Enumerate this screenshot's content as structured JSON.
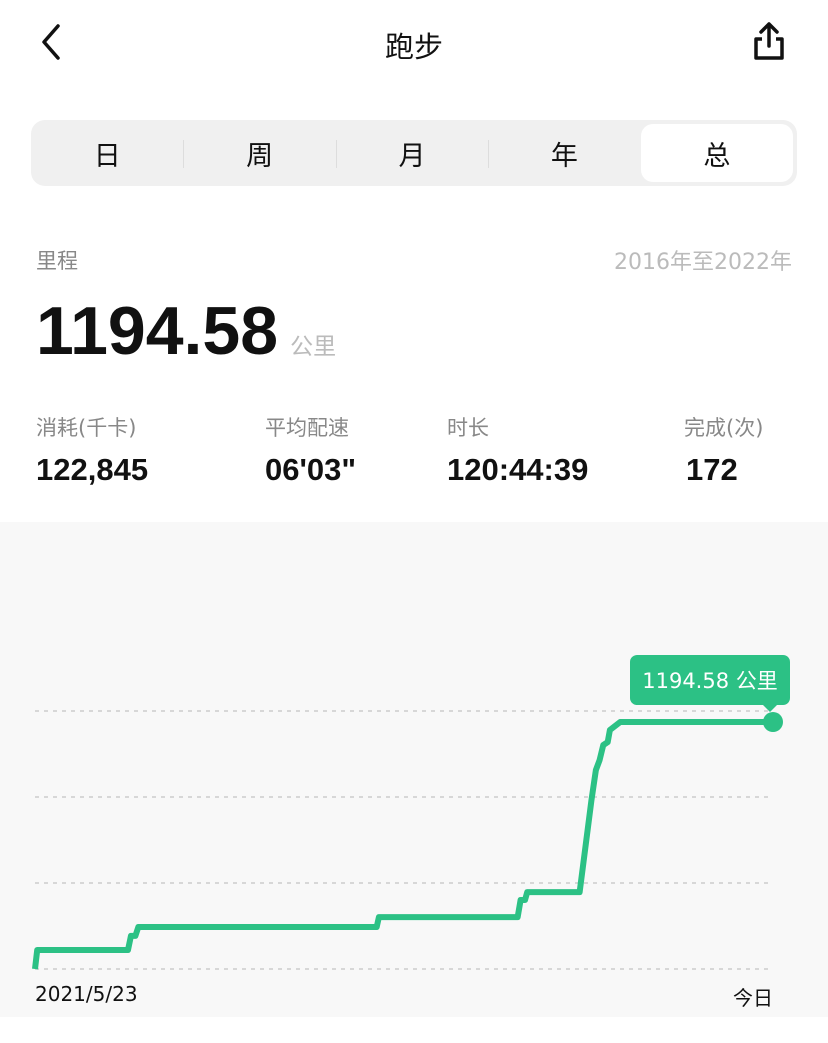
{
  "header": {
    "title": "跑步",
    "back_icon": "chevron-left-icon",
    "share_icon": "share-icon"
  },
  "tabs": [
    {
      "label": "日"
    },
    {
      "label": "周"
    },
    {
      "label": "月"
    },
    {
      "label": "年"
    },
    {
      "label": "总",
      "active": true
    }
  ],
  "summary": {
    "label": "里程",
    "range": "2016年至2022年",
    "distance": "1194.58",
    "unit": "公里"
  },
  "stats": [
    {
      "label": "消耗(千卡)",
      "value": "122,845"
    },
    {
      "label": "平均配速",
      "value": "06'03\""
    },
    {
      "label": "时长",
      "value": "120:44:39"
    },
    {
      "label": "完成(次)",
      "value": "172"
    }
  ],
  "chart_data": {
    "type": "line",
    "style": "cumulative step line",
    "color": "#2cc185",
    "x_start_label": "2021/5/23",
    "x_end_label": "今日",
    "x_unit": "fraction of period from 2021/5/23 to today",
    "ylim": [
      0,
      1195
    ],
    "grid": "horizontal dashed",
    "tooltip": "1194.58 公里",
    "points": [
      [
        0,
        0
      ],
      [
        0.003,
        92
      ],
      [
        0.126,
        92
      ],
      [
        0.13,
        160
      ],
      [
        0.136,
        160
      ],
      [
        0.14,
        203
      ],
      [
        0.463,
        203
      ],
      [
        0.466,
        251
      ],
      [
        0.654,
        251
      ],
      [
        0.658,
        334
      ],
      [
        0.664,
        334
      ],
      [
        0.667,
        372
      ],
      [
        0.738,
        372
      ],
      [
        0.754,
        817
      ],
      [
        0.76,
        962
      ],
      [
        0.765,
        1010
      ],
      [
        0.77,
        1083
      ],
      [
        0.776,
        1097
      ],
      [
        0.779,
        1156
      ],
      [
        0.793,
        1194.58
      ],
      [
        1,
        1194.58
      ]
    ]
  }
}
